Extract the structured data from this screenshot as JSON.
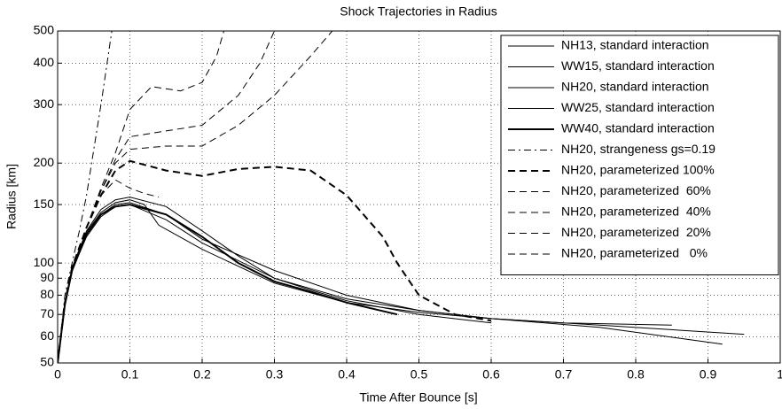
{
  "chart_data": {
    "type": "line",
    "title": "Shock Trajectories in Radius",
    "xlabel": "Time After Bounce [s]",
    "ylabel": "Radius [km]",
    "xlim": [
      0,
      1
    ],
    "xticks": [
      0,
      0.1,
      0.2,
      0.3,
      0.4,
      0.5,
      0.6,
      0.7,
      0.8,
      0.9,
      1
    ],
    "ylim": [
      50,
      500
    ],
    "yticks": [
      50,
      60,
      70,
      80,
      90,
      100,
      150,
      200,
      300,
      400,
      500
    ],
    "yscale": "log",
    "grid": true,
    "legend": "upper right",
    "series": [
      {
        "name": "NH13, standard interaction",
        "color": "#000000",
        "style": "solid",
        "width": 1,
        "x": [
          0,
          0.01,
          0.02,
          0.04,
          0.06,
          0.08,
          0.1,
          0.15,
          0.2,
          0.3,
          0.4,
          0.5,
          0.6,
          0.7,
          0.85
        ],
        "values": [
          50,
          75,
          95,
          122,
          140,
          150,
          152,
          140,
          118,
          95,
          80,
          72,
          68,
          66,
          65
        ]
      },
      {
        "name": "WW15, standard interaction",
        "color": "#000000",
        "style": "solid",
        "width": 1,
        "x": [
          0,
          0.01,
          0.02,
          0.04,
          0.06,
          0.08,
          0.1,
          0.15,
          0.2,
          0.3,
          0.4,
          0.5,
          0.6,
          0.75,
          0.92
        ],
        "values": [
          50,
          75,
          95,
          120,
          138,
          148,
          150,
          135,
          115,
          90,
          78,
          72,
          68,
          64,
          57
        ]
      },
      {
        "name": "NH20, standard interaction",
        "color": "#000000",
        "style": "solid",
        "width": 1,
        "x": [
          0,
          0.01,
          0.02,
          0.04,
          0.06,
          0.08,
          0.1,
          0.12,
          0.14,
          0.2,
          0.3,
          0.4,
          0.5,
          0.6,
          0.75,
          0.95
        ],
        "values": [
          50,
          75,
          96,
          124,
          142,
          152,
          155,
          150,
          130,
          110,
          87,
          76,
          71,
          68,
          65,
          61
        ]
      },
      {
        "name": "WW25, standard interaction",
        "color": "#000000",
        "style": "solid",
        "width": 1,
        "x": [
          0,
          0.01,
          0.02,
          0.04,
          0.06,
          0.08,
          0.1,
          0.15,
          0.2,
          0.25,
          0.3,
          0.35,
          0.4,
          0.5,
          0.6
        ],
        "values": [
          50,
          76,
          97,
          125,
          145,
          155,
          158,
          148,
          125,
          105,
          90,
          83,
          77,
          70,
          66
        ]
      },
      {
        "name": "WW40, standard interaction",
        "color": "#000000",
        "style": "solid",
        "width": 2,
        "x": [
          0,
          0.01,
          0.02,
          0.04,
          0.06,
          0.08,
          0.1,
          0.15,
          0.2,
          0.25,
          0.3,
          0.35,
          0.4,
          0.47
        ],
        "values": [
          50,
          75,
          95,
          122,
          140,
          148,
          150,
          140,
          120,
          100,
          88,
          82,
          76,
          70
        ]
      },
      {
        "name": "NH20, strangeness gs=0.19",
        "color": "#000000",
        "style": "dashdot",
        "width": 1,
        "x": [
          0,
          0.01,
          0.02,
          0.03,
          0.04,
          0.05,
          0.06,
          0.075
        ],
        "values": [
          50,
          80,
          100,
          125,
          160,
          220,
          300,
          500
        ]
      },
      {
        "name": "NH20, parameterized 100%",
        "color": "#000000",
        "style": "dashed",
        "width": 2,
        "x": [
          0,
          0.01,
          0.02,
          0.04,
          0.06,
          0.08,
          0.1,
          0.15,
          0.2,
          0.25,
          0.3,
          0.35,
          0.4,
          0.45,
          0.47,
          0.5,
          0.55,
          0.6
        ],
        "values": [
          50,
          76,
          97,
          128,
          160,
          190,
          203,
          190,
          183,
          192,
          195,
          190,
          160,
          120,
          100,
          80,
          70,
          67
        ]
      },
      {
        "name": "NH20, parameterized  60%",
        "color": "#000000",
        "style": "dashed",
        "width": 1,
        "x": [
          0,
          0.01,
          0.02,
          0.04,
          0.06,
          0.08,
          0.1,
          0.15,
          0.2,
          0.25,
          0.3,
          0.35,
          0.38
        ],
        "values": [
          50,
          76,
          97,
          128,
          165,
          200,
          220,
          225,
          225,
          260,
          320,
          420,
          500
        ]
      },
      {
        "name": "NH20, parameterized  40%",
        "color": "#000000",
        "style": "dashed",
        "width": 1,
        "x": [
          0,
          0.01,
          0.02,
          0.04,
          0.06,
          0.08,
          0.1,
          0.15,
          0.2,
          0.25,
          0.28,
          0.3
        ],
        "values": [
          50,
          76,
          97,
          128,
          165,
          205,
          240,
          250,
          260,
          320,
          400,
          500
        ]
      },
      {
        "name": "NH20, parameterized  20%",
        "color": "#000000",
        "style": "dashed",
        "width": 1,
        "x": [
          0,
          0.01,
          0.02,
          0.04,
          0.06,
          0.08,
          0.1,
          0.13,
          0.17,
          0.2,
          0.22,
          0.23
        ],
        "values": [
          50,
          76,
          97,
          128,
          168,
          215,
          290,
          340,
          330,
          350,
          420,
          500
        ]
      },
      {
        "name": "NH20, parameterized   0%",
        "color": "#000000",
        "style": "dashed",
        "width": 1,
        "x": [
          0,
          0.01,
          0.02,
          0.04,
          0.06,
          0.08,
          0.1,
          0.12,
          0.14
        ],
        "values": [
          50,
          76,
          97,
          128,
          160,
          178,
          168,
          162,
          158
        ]
      }
    ]
  }
}
